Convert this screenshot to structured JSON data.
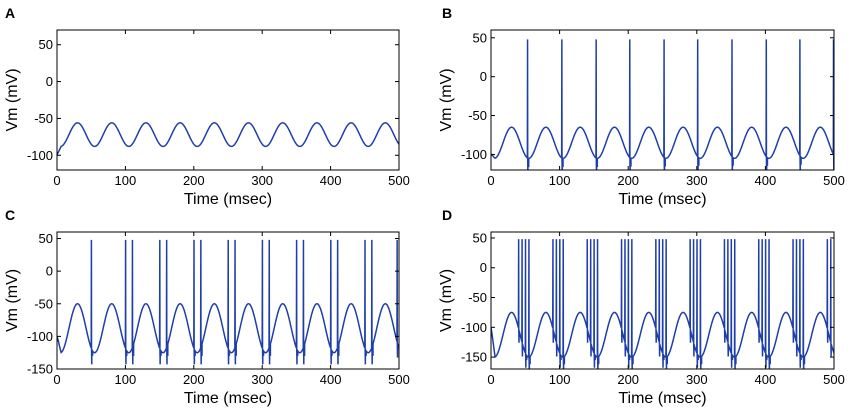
{
  "figure": {
    "line_color": "#1f3fa8",
    "axis_color": "#000000"
  },
  "chart_data": [
    {
      "type": "line",
      "panel_label": "A",
      "xlabel": "Time (msec)",
      "ylabel": "Vm (mV)",
      "xlim": [
        0,
        500
      ],
      "ylim": [
        -120,
        70
      ],
      "xticks": [
        0,
        100,
        200,
        300,
        400,
        500
      ],
      "yticks": [
        -100,
        -50,
        0,
        50
      ],
      "grid": false,
      "waveform": {
        "period_ms": 50,
        "cycles": 10,
        "trough_mV": -88,
        "peak_mV": -56,
        "initial_mV": -100,
        "spikes_per_cycle": 0,
        "spike_peak_mV": 48
      },
      "spike_times_ms": []
    },
    {
      "type": "line",
      "panel_label": "B",
      "xlabel": "Time (msec)",
      "ylabel": "Vm (mV)",
      "xlim": [
        0,
        500
      ],
      "ylim": [
        -120,
        60
      ],
      "xticks": [
        0,
        100,
        200,
        300,
        400,
        500
      ],
      "yticks": [
        -100,
        -50,
        0,
        50
      ],
      "grid": false,
      "waveform": {
        "period_ms": 50,
        "cycles": 10,
        "trough_mV": -105,
        "peak_mV": -65,
        "initial_mV": -100,
        "spikes_per_cycle": 1,
        "spike_peak_mV": 48
      },
      "spike_times_ms": [
        53,
        103,
        153,
        202,
        252,
        301,
        351,
        401,
        450,
        499
      ]
    },
    {
      "type": "line",
      "panel_label": "C",
      "xlabel": "Time (msec)",
      "ylabel": "Vm (mV)",
      "xlim": [
        0,
        500
      ],
      "ylim": [
        -150,
        60
      ],
      "xticks": [
        0,
        100,
        200,
        300,
        400,
        500
      ],
      "yticks": [
        -150,
        -100,
        -50,
        0,
        50
      ],
      "grid": false,
      "waveform": {
        "period_ms": 50,
        "cycles": 10,
        "trough_mV": -125,
        "peak_mV": -50,
        "initial_mV": -100,
        "spikes_per_cycle": 2,
        "spike_peak_mV": 48
      },
      "spike_times_ms": [
        50,
        100,
        110,
        150,
        160,
        200,
        210,
        250,
        260,
        300,
        310,
        350,
        360,
        400,
        410,
        450,
        460,
        497
      ]
    },
    {
      "type": "line",
      "panel_label": "D",
      "xlabel": "Time (msec)",
      "ylabel": "Vm (mV)",
      "xlim": [
        0,
        500
      ],
      "ylim": [
        -170,
        60
      ],
      "xticks": [
        0,
        100,
        200,
        300,
        400,
        500
      ],
      "yticks": [
        -150,
        -100,
        -50,
        0,
        50
      ],
      "grid": false,
      "waveform": {
        "period_ms": 50,
        "cycles": 10,
        "trough_mV": -150,
        "peak_mV": -75,
        "initial_mV": -100,
        "spikes_per_cycle": 4,
        "spike_peak_mV": 48
      },
      "spike_times_ms": [
        40,
        45,
        50,
        55,
        90,
        95,
        100,
        105,
        140,
        145,
        150,
        155,
        190,
        195,
        200,
        205,
        240,
        245,
        250,
        255,
        290,
        295,
        300,
        305,
        340,
        345,
        350,
        355,
        390,
        395,
        400,
        405,
        440,
        445,
        450,
        455,
        490,
        495
      ]
    }
  ]
}
